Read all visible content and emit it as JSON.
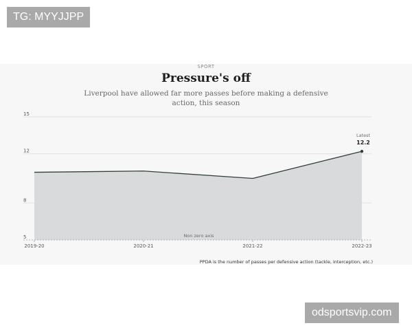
{
  "watermarks": {
    "top": "TG: MYYJJPP",
    "bottom": "odsportsvip.com"
  },
  "header": {
    "kicker": "SPORT",
    "title": "Pressure's off",
    "subtitle": "Liverpool have allowed far more passes before making a defensive action, this season"
  },
  "chart_data": {
    "type": "area",
    "categories": [
      "2019-20",
      "2020-21",
      "2021-22",
      "2022-23"
    ],
    "values": [
      10.5,
      10.6,
      10.0,
      12.2
    ],
    "yticks": [
      5,
      8,
      12,
      15
    ],
    "ylim": [
      5,
      15
    ],
    "grid": true,
    "annotations": {
      "latest_label": "Latest",
      "latest_value": "12.2",
      "axis_note": "Non zero axis"
    },
    "footnote": "PPDA is the number of passes per defensive action (tackle, interception, etc.)",
    "colors": {
      "line": "#333f3b",
      "fill": "#d8dadb",
      "grid": "#e2e2e2",
      "axis": "#b0b0b0"
    }
  }
}
